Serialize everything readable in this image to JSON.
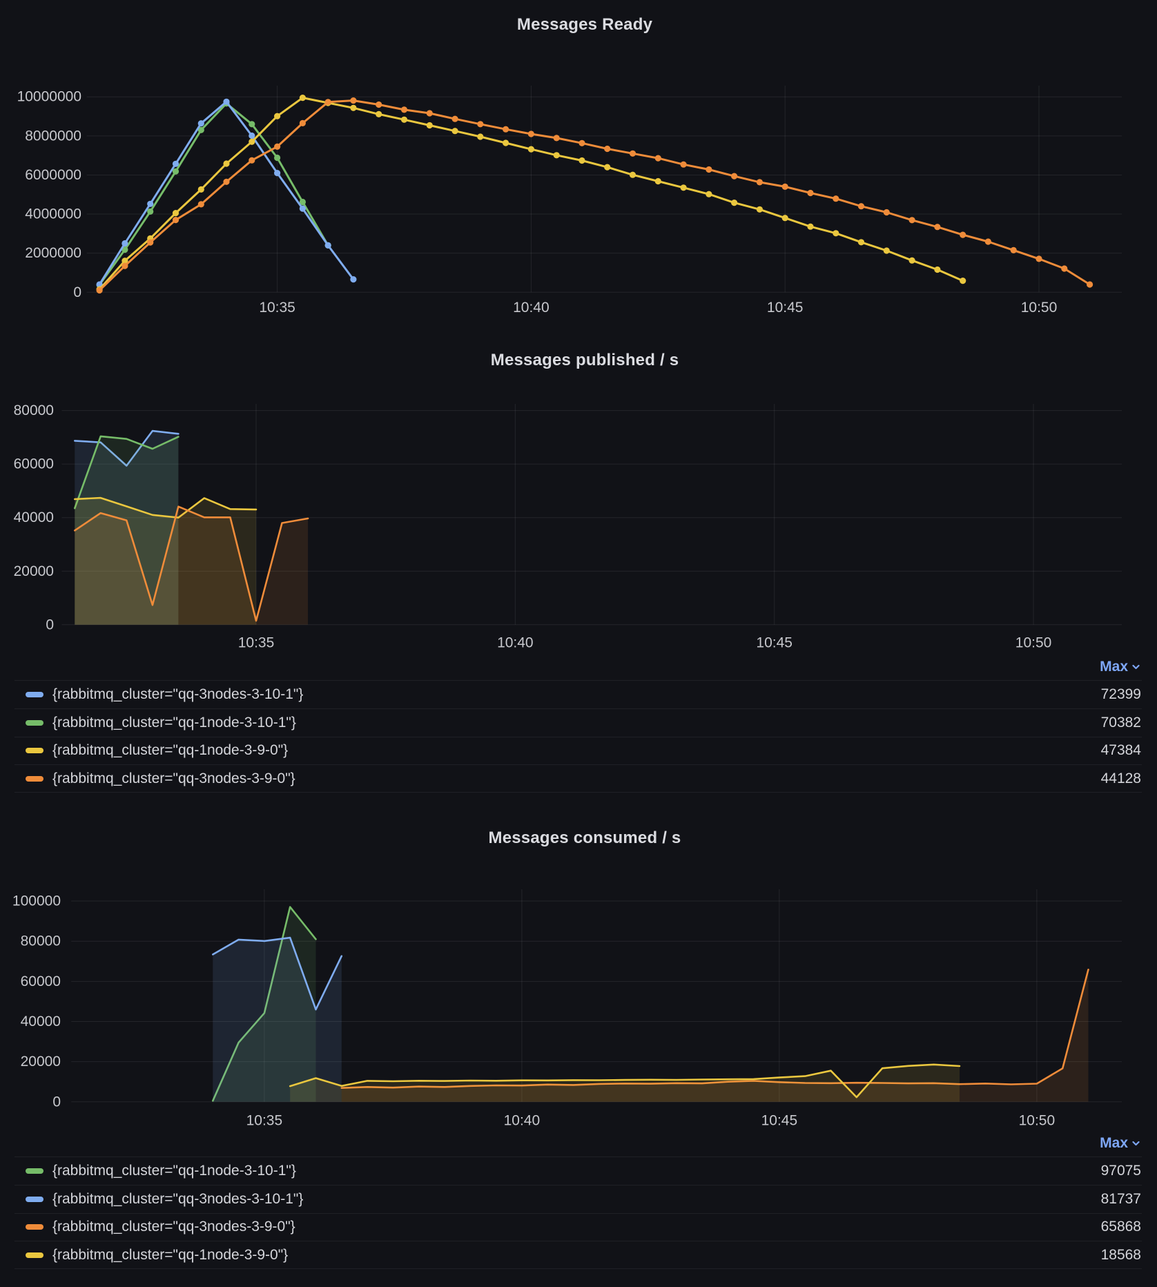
{
  "palette": {
    "blue": "#7FACEF",
    "green": "#76BC69",
    "yellow": "#EAC73F",
    "orange": "#EF8C3A"
  },
  "colors": {
    "background": "#111217",
    "grid": "rgba(204,204,220,0.10)",
    "axis_text": "#C7C8CD",
    "legend_text": "#D4D5DA",
    "title_text": "#DBDCE1",
    "legend_link": "#7EA7F7",
    "legend_border": "rgba(204,204,220,0.08)"
  },
  "chart_data": [
    {
      "type": "line",
      "title": "Messages Ready",
      "xlabel": "",
      "ylabel": "",
      "grid": true,
      "points_visible": true,
      "x_interval_seconds": 30,
      "x_ticks": [
        "10:35",
        "10:40",
        "10:45",
        "10:50"
      ],
      "y_ticks": [
        "0",
        "2000000",
        "4000000",
        "6000000",
        "8000000",
        "10000000"
      ],
      "ylim": [
        0,
        10580000
      ],
      "xlim": [
        "10:31:15",
        "10:51:40"
      ],
      "legend": null,
      "series": [
        {
          "name": "{rabbitmq_cluster=\"qq-1node-3-10-1\"}",
          "color_key": "green",
          "start": "10:31:30",
          "values": [
            380000,
            2180000,
            4130000,
            6180000,
            8300000,
            9660000,
            8600000,
            6880000,
            4620000,
            2400000
          ]
        },
        {
          "name": "{rabbitmq_cluster=\"qq-3nodes-3-10-1\"}",
          "color_key": "blue",
          "start": "10:31:30",
          "values": [
            400000,
            2500000,
            4520000,
            6570000,
            8640000,
            9750000,
            8010000,
            6100000,
            4280000,
            2400000,
            660000
          ]
        },
        {
          "name": "{rabbitmq_cluster=\"qq-1node-3-9-0\"}",
          "color_key": "yellow",
          "start": "10:31:30",
          "values": [
            150000,
            1610000,
            2750000,
            4050000,
            5260000,
            6580000,
            7700000,
            9010000,
            9950000,
            9690000,
            9430000,
            9110000,
            8830000,
            8540000,
            8250000,
            7960000,
            7640000,
            7320000,
            7010000,
            6740000,
            6400000,
            6010000,
            5680000,
            5350000,
            5020000,
            4580000,
            4240000,
            3800000,
            3360000,
            3020000,
            2560000,
            2130000,
            1630000,
            1160000,
            590000
          ]
        },
        {
          "name": "{rabbitmq_cluster=\"qq-3nodes-3-9-0\"}",
          "color_key": "orange",
          "start": "10:31:30",
          "values": [
            100000,
            1350000,
            2550000,
            3700000,
            4500000,
            5650000,
            6750000,
            7450000,
            8650000,
            9730000,
            9810000,
            9600000,
            9340000,
            9160000,
            8870000,
            8600000,
            8340000,
            8100000,
            7890000,
            7630000,
            7340000,
            7100000,
            6860000,
            6540000,
            6280000,
            5940000,
            5630000,
            5400000,
            5080000,
            4790000,
            4400000,
            4090000,
            3690000,
            3340000,
            2940000,
            2590000,
            2150000,
            1710000,
            1210000,
            400000
          ]
        }
      ]
    },
    {
      "type": "area",
      "title": "Messages published / s",
      "xlabel": "",
      "ylabel": "",
      "grid": true,
      "points_visible": false,
      "x_interval_seconds": 30,
      "x_ticks": [
        "10:35",
        "10:40",
        "10:45",
        "10:50"
      ],
      "y_ticks": [
        "0",
        "20000",
        "40000",
        "60000",
        "80000"
      ],
      "ylim": [
        0,
        82400
      ],
      "xlim": [
        "10:31:15",
        "10:51:40"
      ],
      "series": [
        {
          "name": "{rabbitmq_cluster=\"qq-3nodes-3-10-1\"}",
          "color_key": "blue",
          "start": "10:31:30",
          "values": [
            68700,
            68100,
            59400,
            72399,
            71300
          ]
        },
        {
          "name": "{rabbitmq_cluster=\"qq-1node-3-10-1\"}",
          "color_key": "green",
          "start": "10:31:30",
          "values": [
            43500,
            70382,
            69400,
            65700,
            70200
          ]
        },
        {
          "name": "{rabbitmq_cluster=\"qq-1node-3-9-0\"}",
          "color_key": "yellow",
          "start": "10:31:30",
          "values": [
            46900,
            47384,
            44200,
            41000,
            40000,
            47300,
            43200,
            43050
          ]
        },
        {
          "name": "{rabbitmq_cluster=\"qq-3nodes-3-9-0\"}",
          "color_key": "orange",
          "start": "10:31:30",
          "values": [
            35200,
            41700,
            39000,
            7350,
            44128,
            40100,
            40100,
            1470,
            38000,
            39700
          ]
        }
      ],
      "legend": {
        "header": "Max",
        "rows": [
          {
            "name": "{rabbitmq_cluster=\"qq-3nodes-3-10-1\"}",
            "color_key": "blue",
            "value": "72399"
          },
          {
            "name": "{rabbitmq_cluster=\"qq-1node-3-10-1\"}",
            "color_key": "green",
            "value": "70382"
          },
          {
            "name": "{rabbitmq_cluster=\"qq-1node-3-9-0\"}",
            "color_key": "yellow",
            "value": "47384"
          },
          {
            "name": "{rabbitmq_cluster=\"qq-3nodes-3-9-0\"}",
            "color_key": "orange",
            "value": "44128"
          }
        ]
      }
    },
    {
      "type": "area",
      "title": "Messages consumed / s",
      "xlabel": "",
      "ylabel": "",
      "grid": true,
      "points_visible": false,
      "x_interval_seconds": 30,
      "x_ticks": [
        "10:35",
        "10:40",
        "10:45",
        "10:50"
      ],
      "y_ticks": [
        "0",
        "20000",
        "40000",
        "60000",
        "80000",
        "100000"
      ],
      "ylim": [
        0,
        105800
      ],
      "xlim": [
        "10:31:15",
        "10:51:40"
      ],
      "series": [
        {
          "name": "{rabbitmq_cluster=\"qq-1node-3-10-1\"}",
          "color_key": "green",
          "start": "10:34:00",
          "values": [
            500,
            29500,
            44200,
            97075,
            81000
          ]
        },
        {
          "name": "{rabbitmq_cluster=\"qq-3nodes-3-10-1\"}",
          "color_key": "blue",
          "start": "10:34:00",
          "values": [
            73400,
            80800,
            80100,
            81737,
            46000,
            72600
          ]
        },
        {
          "name": "{rabbitmq_cluster=\"qq-3nodes-3-9-0\"}",
          "color_key": "orange",
          "start": "10:36:30",
          "values": [
            6900,
            7400,
            7100,
            7600,
            7400,
            7900,
            8200,
            8100,
            8600,
            8400,
            8900,
            9100,
            9000,
            9300,
            9200,
            10000,
            10450,
            9800,
            9400,
            9300,
            9500,
            9400,
            9200,
            9300,
            8800,
            9100,
            8700,
            9060,
            16650,
            65868
          ]
        },
        {
          "name": "{rabbitmq_cluster=\"qq-1node-3-9-0\"}",
          "color_key": "yellow",
          "start": "10:35:30",
          "values": [
            7800,
            11800,
            7900,
            10450,
            10250,
            10500,
            10400,
            10600,
            10500,
            10700,
            10650,
            10800,
            10750,
            10900,
            11000,
            10950,
            11100,
            11200,
            11300,
            12100,
            12800,
            15500,
            2300,
            16700,
            17900,
            18568,
            17800
          ]
        }
      ],
      "legend": {
        "header": "Max",
        "rows": [
          {
            "name": "{rabbitmq_cluster=\"qq-1node-3-10-1\"}",
            "color_key": "green",
            "value": "97075"
          },
          {
            "name": "{rabbitmq_cluster=\"qq-3nodes-3-10-1\"}",
            "color_key": "blue",
            "value": "81737"
          },
          {
            "name": "{rabbitmq_cluster=\"qq-3nodes-3-9-0\"}",
            "color_key": "orange",
            "value": "65868"
          },
          {
            "name": "{rabbitmq_cluster=\"qq-1node-3-9-0\"}",
            "color_key": "yellow",
            "value": "18568"
          }
        ]
      }
    }
  ]
}
